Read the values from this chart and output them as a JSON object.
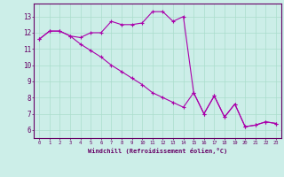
{
  "xlabel": "Windchill (Refroidissement éolien,°C)",
  "ylabel": "",
  "background_color": "#cceee8",
  "grid_color": "#aaddcc",
  "line_color": "#aa00aa",
  "marker_color": "#aa00aa",
  "x_data": [
    0,
    1,
    2,
    3,
    4,
    5,
    6,
    7,
    8,
    9,
    10,
    11,
    12,
    13,
    14,
    15,
    16,
    17,
    18,
    19,
    20,
    21,
    22,
    23
  ],
  "y_line1": [
    11.6,
    12.1,
    12.1,
    11.8,
    11.7,
    12.0,
    12.0,
    12.7,
    12.5,
    12.5,
    12.6,
    13.3,
    13.3,
    12.7,
    13.0,
    8.3,
    7.0,
    8.1,
    6.8,
    7.6,
    6.2,
    6.3,
    6.5,
    6.4
  ],
  "y_line2": [
    11.6,
    12.1,
    12.1,
    11.8,
    11.3,
    10.9,
    10.5,
    10.0,
    9.6,
    9.2,
    8.8,
    8.3,
    8.0,
    7.7,
    7.4,
    8.3,
    7.0,
    8.1,
    6.8,
    7.6,
    6.2,
    6.3,
    6.5,
    6.4
  ],
  "xlim": [
    -0.5,
    23.5
  ],
  "ylim": [
    5.5,
    13.8
  ],
  "yticks": [
    6,
    7,
    8,
    9,
    10,
    11,
    12,
    13
  ],
  "xticks": [
    0,
    1,
    2,
    3,
    4,
    5,
    6,
    7,
    8,
    9,
    10,
    11,
    12,
    13,
    14,
    15,
    16,
    17,
    18,
    19,
    20,
    21,
    22,
    23
  ]
}
